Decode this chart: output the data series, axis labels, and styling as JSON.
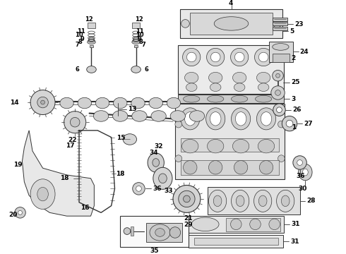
{
  "bg_color": "#ffffff",
  "line_color": "#333333",
  "text_color": "#000000",
  "figsize": [
    4.9,
    3.6
  ],
  "dpi": 100
}
